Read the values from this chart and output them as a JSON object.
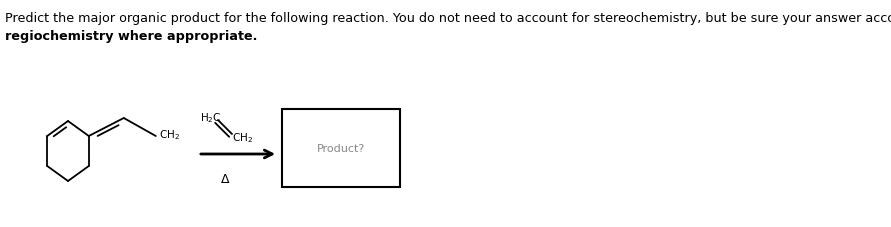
{
  "title_line1": "Predict the major organic product for the following reaction. You do not need to account for stereochemistry, but be sure your answer accounts for",
  "title_line2": "regiochemistry where appropriate.",
  "title_color": "#c0392b",
  "title_fontsize": 9.2,
  "title2_color": "#2c3e50",
  "product_text": "Product?",
  "product_text_color": "#888888",
  "background_color": "#ffffff",
  "fig_width": 8.91,
  "fig_height": 2.28,
  "fig_dpi": 100
}
